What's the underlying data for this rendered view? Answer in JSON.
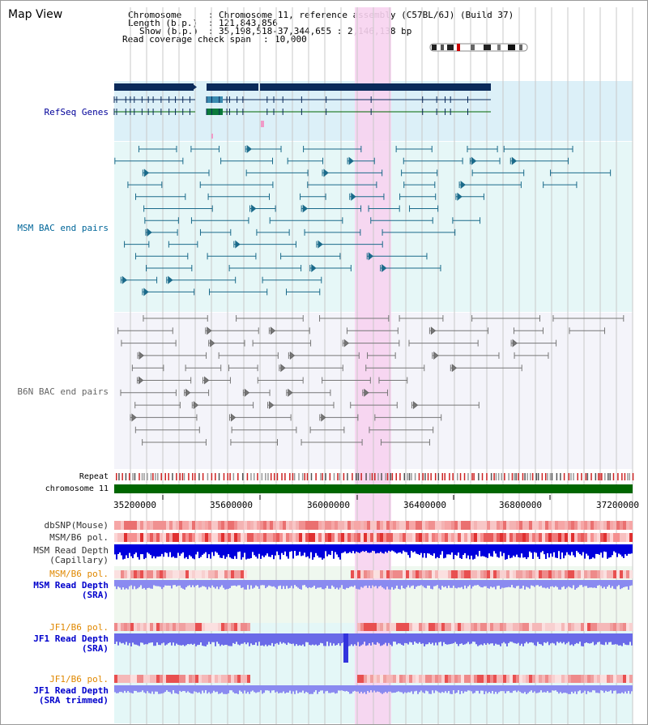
{
  "app": {
    "title": "Map View"
  },
  "header": {
    "chromosome_key": "Chromosome",
    "chromosome_val": "Chromosome 11, reference assembly (C57BL/6J) (Build 37)",
    "length_key": "Length (b.p.)",
    "length_val": "121,843,856",
    "show_key": "Show (b.p.)",
    "show_val": "35,198,518-37,344,655 : 2,146,138 bp",
    "span_key": "Read coverage check span",
    "span_val": "10,000"
  },
  "tracks": {
    "refseq": "RefSeq Genes",
    "msm_bac": "MSM BAC end pairs",
    "b6n_bac": "B6N BAC end pairs",
    "repeat": "Repeat",
    "chromosome": "chromosome 11",
    "dbsnp": "dbSNP(Mouse)",
    "msm_b6_pol": "MSM/B6 pol.",
    "msm_read_depth_cap_1": "MSM Read Depth",
    "msm_read_depth_cap_2": "(Capillary)",
    "msm_b6_pol_sra": "MSM/B6 pol.",
    "msm_read_depth_sra_1": "MSM Read Depth",
    "msm_read_depth_sra_2": "(SRA)",
    "jf1_b6_pol": "JF1/B6 pol.",
    "jf1_read_depth_sra_1": "JF1 Read Depth",
    "jf1_read_depth_sra_2": "(SRA)",
    "jf1_b6_pol_trim": "JF1/B6 pol.",
    "jf1_read_depth_trim_1": "JF1 Read Depth",
    "jf1_read_depth_trim_2": "(SRA trimmed)"
  },
  "axis": {
    "ticks": [
      "35200000",
      "35600000",
      "36000000",
      "36400000",
      "36800000",
      "37200000"
    ]
  },
  "colors": {
    "refseq_label": "#000099",
    "msm_label": "#006699",
    "b6n_label": "#666666",
    "pol_orange": "#e08800",
    "depth_blue": "#0000cc",
    "highlight_pink": "#f7d3ef",
    "chromosome_green": "#006600"
  }
}
